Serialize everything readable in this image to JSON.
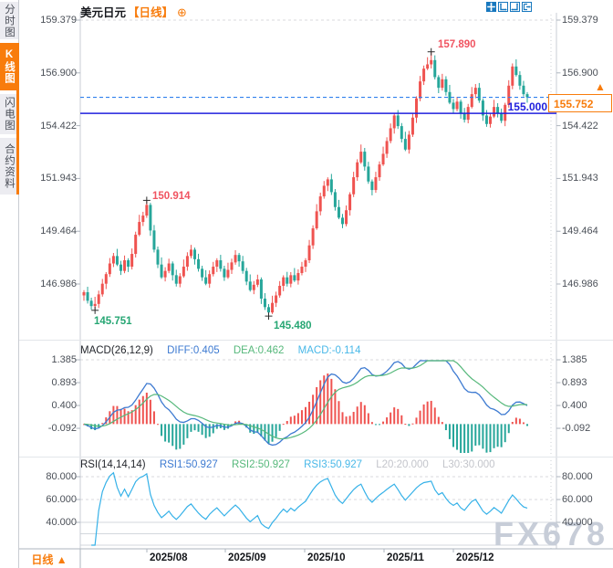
{
  "header": {
    "title": "美元日元",
    "period_tag": "【日线】",
    "add_icon": "⊕"
  },
  "sidebar": {
    "tabs": [
      {
        "label": "分时图",
        "active": false
      },
      {
        "label": "K线图",
        "active": true
      },
      {
        "label": "闪电图",
        "active": false
      },
      {
        "label": "合约资料",
        "active": false
      }
    ]
  },
  "toolbar": {
    "icons": [
      "pan-crosshair",
      "axis-scale-left",
      "axis-scale-right",
      "exit-chart"
    ]
  },
  "main_pane": {
    "y_labels": [
      "159.379",
      "156.900",
      "154.422",
      "151.943",
      "149.464",
      "146.986"
    ],
    "annotations": {
      "high_late_nov": "157.890",
      "high_aug": "150.914",
      "low_jul": "145.751",
      "low_sep": "145.480"
    },
    "price_line": "155.000",
    "last_price": "155.752",
    "up_arrow": "▲"
  },
  "macd_pane": {
    "title": "MACD(26,12,9)",
    "diff": "DIFF:0.405",
    "dea": "DEA:0.462",
    "macd": "MACD:-0.114",
    "y_labels": [
      "1.385",
      "0.893",
      "0.400",
      "-0.092"
    ]
  },
  "rsi_pane": {
    "title": "RSI(14,14,14)",
    "rsi1": "RSI1:50.927",
    "rsi2": "RSI2:50.927",
    "rsi3": "RSI3:50.927",
    "l20": "L20:20.000",
    "l30": "L30:30.000",
    "y_labels": [
      "80.000",
      "60.000",
      "40.000"
    ]
  },
  "x_axis": {
    "labels": [
      "2025/08",
      "2025/09",
      "2025/10",
      "2025/11",
      "2025/12"
    ]
  },
  "bottom_bar": {
    "period_label": "日线",
    "arrow": "▲"
  },
  "watermark": "FX678",
  "colors": {
    "up": "#ef5350",
    "down": "#26a69a",
    "diff_line": "#3d7ad1",
    "dea_line": "#56b87b",
    "rsi_line": "#35b1e8",
    "price_line_solid": "#2020dd",
    "price_line_dashed": "#2f80ed",
    "accent_orange": "#f87c0c",
    "annotation_high": "#f05461",
    "annotation_low": "#26a673",
    "grid": "#d8d8dd",
    "axis": "#c9cdd4",
    "tick": "#aeb6bf"
  },
  "chart_data": {
    "type": "candlestick",
    "symbol": "美元日元",
    "interval": "日线",
    "title": "美元日元【日线】",
    "price_axis": [
      159.379,
      156.9,
      154.422,
      151.943,
      149.464,
      146.986
    ],
    "x_tick_labels": [
      "2025/08",
      "2025/09",
      "2025/10",
      "2025/11",
      "2025/12"
    ],
    "closes": [
      146.6,
      146.2,
      145.95,
      146.05,
      146.5,
      147.0,
      147.45,
      147.95,
      148.3,
      147.9,
      147.6,
      148.1,
      147.8,
      148.4,
      149.3,
      149.9,
      150.2,
      150.7,
      149.5,
      148.6,
      147.9,
      147.3,
      147.6,
      147.95,
      147.4,
      147.0,
      147.35,
      147.8,
      148.3,
      148.6,
      148.15,
      147.7,
      147.3,
      147.0,
      147.45,
      147.8,
      148.1,
      147.7,
      147.3,
      147.65,
      148.0,
      148.35,
      148.05,
      147.6,
      147.1,
      146.7,
      146.95,
      147.2,
      146.3,
      145.9,
      145.65,
      146.1,
      146.45,
      146.9,
      147.3,
      147.0,
      147.4,
      147.15,
      147.5,
      147.8,
      148.1,
      148.8,
      149.6,
      150.4,
      151.1,
      151.6,
      151.9,
      151.3,
      150.6,
      150.1,
      149.8,
      150.45,
      151.2,
      152.0,
      152.7,
      153.2,
      152.5,
      151.8,
      151.4,
      152.0,
      152.6,
      153.1,
      153.7,
      154.3,
      154.9,
      154.4,
      153.8,
      153.3,
      154.0,
      154.8,
      155.7,
      156.5,
      157.1,
      157.3,
      157.5,
      156.7,
      156.2,
      156.6,
      156.0,
      155.5,
      155.2,
      155.55,
      155.0,
      154.7,
      155.3,
      155.9,
      156.2,
      155.6,
      154.9,
      154.5,
      154.85,
      155.3,
      155.0,
      154.65,
      155.4,
      156.3,
      157.2,
      156.8,
      156.3,
      155.9,
      155.752
    ],
    "first_open": 146.45,
    "marked_points": [
      {
        "index": 3,
        "type": "low",
        "price": 145.751
      },
      {
        "index": 17,
        "type": "high",
        "price": 150.914
      },
      {
        "index": 50,
        "type": "low",
        "price": 145.48
      },
      {
        "index": 94,
        "type": "high",
        "price": 157.89
      }
    ],
    "last_price": 155.752,
    "horizontal_line": 155.0,
    "indicators": {
      "macd": {
        "params": [
          26,
          12,
          9
        ],
        "diff": 0.405,
        "dea": 0.462,
        "macd": -0.114,
        "axis": [
          1.385,
          0.893,
          0.4,
          -0.092
        ]
      },
      "rsi": {
        "params": [
          14,
          14,
          14
        ],
        "rsi1": 50.927,
        "rsi2": 50.927,
        "rsi3": 50.927,
        "l20": 20.0,
        "l30": 30.0,
        "axis": [
          80.0,
          60.0,
          40.0
        ]
      }
    }
  }
}
